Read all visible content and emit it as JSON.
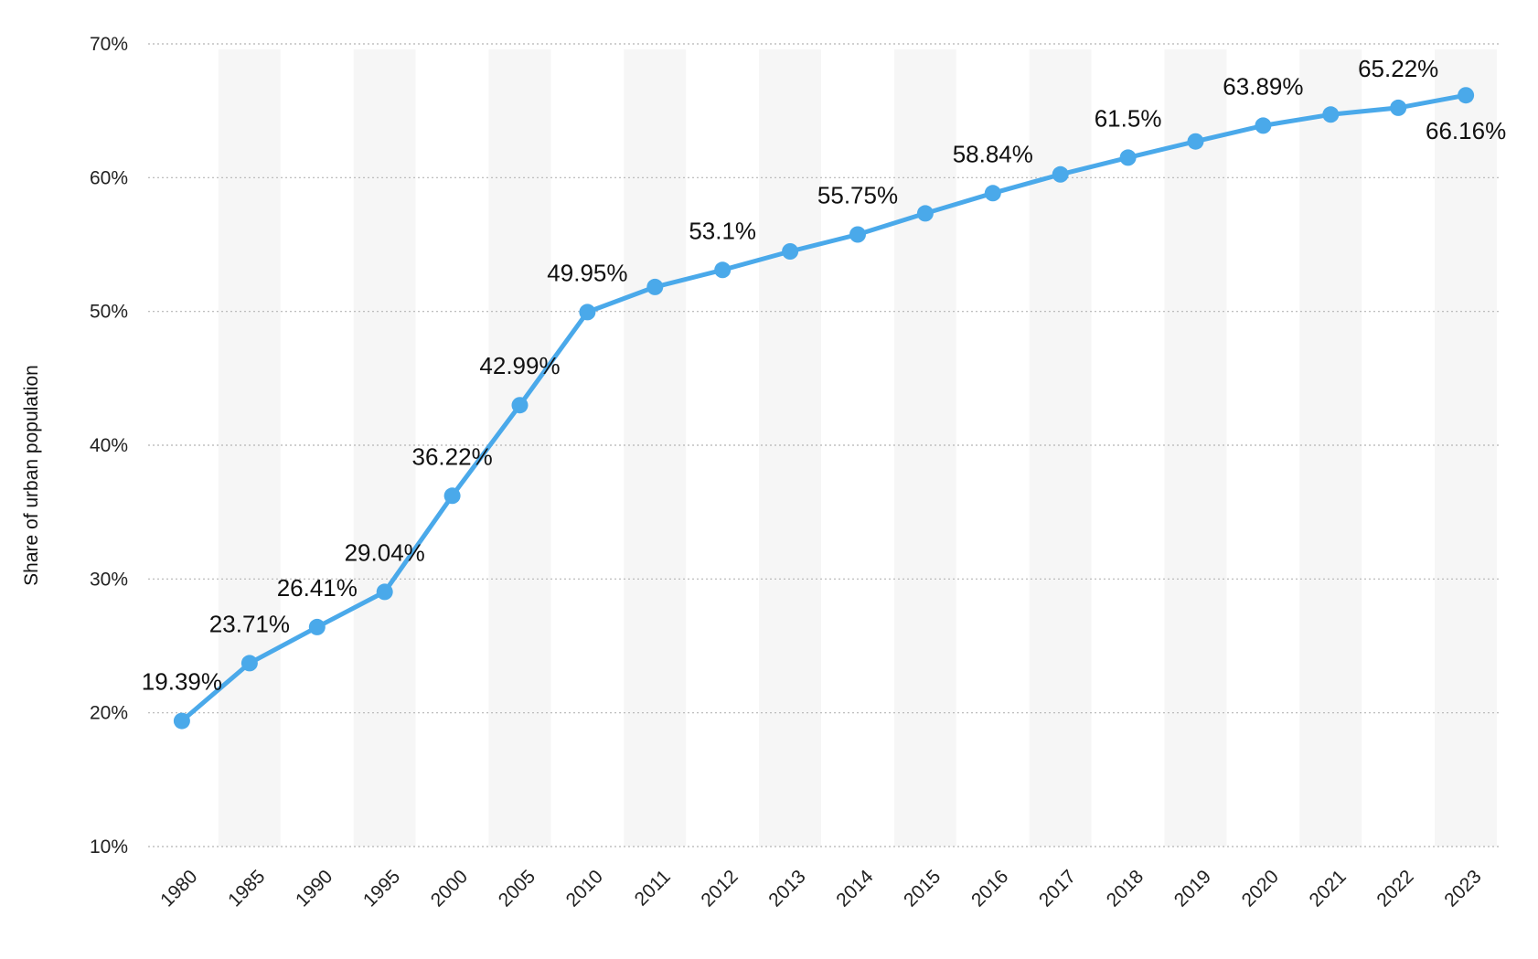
{
  "chart_data": {
    "type": "line",
    "title": "",
    "xlabel": "",
    "ylabel": "Share of urban population",
    "y_unit": "%",
    "ylim": [
      10,
      70
    ],
    "y_ticks": [
      10,
      20,
      30,
      40,
      50,
      60,
      70
    ],
    "y_tick_labels": [
      "10%",
      "20%",
      "30%",
      "40%",
      "50%",
      "60%",
      "70%"
    ],
    "grid": true,
    "legend": "none",
    "categories": [
      "1980",
      "1985",
      "1990",
      "1995",
      "2000",
      "2005",
      "2010",
      "2011",
      "2012",
      "2013",
      "2014",
      "2015",
      "2016",
      "2017",
      "2018",
      "2019",
      "2020",
      "2021",
      "2022",
      "2023"
    ],
    "series": [
      {
        "color": "#4aa9ea",
        "values": [
          19.39,
          23.71,
          26.41,
          29.04,
          36.22,
          42.99,
          49.95,
          51.83,
          53.1,
          54.49,
          55.75,
          57.33,
          58.84,
          60.24,
          61.5,
          62.71,
          63.89,
          64.72,
          65.22,
          66.16
        ]
      }
    ],
    "data_labels": [
      {
        "index": 0,
        "text": "19.39%"
      },
      {
        "index": 1,
        "text": "23.71%"
      },
      {
        "index": 2,
        "text": "26.41%"
      },
      {
        "index": 3,
        "text": "29.04%"
      },
      {
        "index": 4,
        "text": "36.22%"
      },
      {
        "index": 5,
        "text": "42.99%"
      },
      {
        "index": 6,
        "text": "49.95%"
      },
      {
        "index": 8,
        "text": "53.1%"
      },
      {
        "index": 10,
        "text": "55.75%"
      },
      {
        "index": 12,
        "text": "58.84%"
      },
      {
        "index": 14,
        "text": "61.5%"
      },
      {
        "index": 16,
        "text": "63.89%"
      },
      {
        "index": 18,
        "text": "65.22%"
      },
      {
        "index": 19,
        "text": "66.16%"
      }
    ]
  }
}
